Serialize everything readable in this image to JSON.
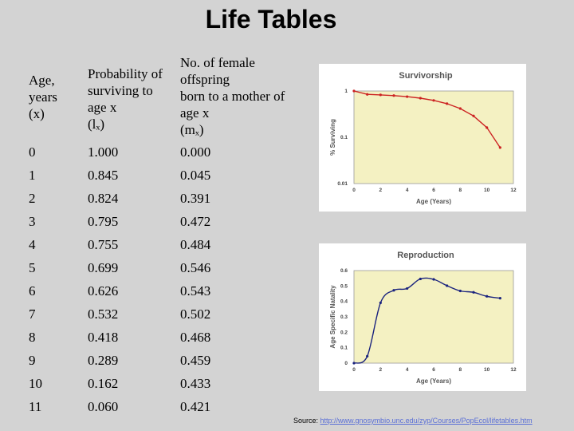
{
  "title": "Life Tables",
  "table": {
    "headers": {
      "age": [
        "Age,",
        "years",
        "(x)"
      ],
      "lx": [
        "Probability of",
        "surviving to",
        "age x",
        "(lₓ)"
      ],
      "mx": [
        "No. of female",
        "offspring",
        "born to a mother of",
        "age x",
        "(mₓ)"
      ]
    },
    "rows": [
      [
        "0",
        "1.000",
        "0.000"
      ],
      [
        "1",
        "0.845",
        "0.045"
      ],
      [
        "2",
        "0.824",
        "0.391"
      ],
      [
        "3",
        "0.795",
        "0.472"
      ],
      [
        "4",
        "0.755",
        "0.484"
      ],
      [
        "5",
        "0.699",
        "0.546"
      ],
      [
        "6",
        "0.626",
        "0.543"
      ],
      [
        "7",
        "0.532",
        "0.502"
      ],
      [
        "8",
        "0.418",
        "0.468"
      ],
      [
        "9",
        "0.289",
        "0.459"
      ],
      [
        "10",
        "0.162",
        "0.433"
      ],
      [
        "11",
        "0.060",
        "0.421"
      ]
    ]
  },
  "source": {
    "prefix": "Source: ",
    "link": "http://www.gnosymbio.unc.edu/zyp/Courses/PopEcol/lifetables.htm"
  },
  "chart_data": [
    {
      "type": "line",
      "title": "Survivorship",
      "xlabel": "Age (Years)",
      "ylabel": "% Surviving",
      "xlim": [
        0,
        12
      ],
      "ylim": [
        0.01,
        1
      ],
      "yscale": "log",
      "xticks": [
        "0",
        "2",
        "4",
        "6",
        "8",
        "10",
        "12"
      ],
      "yticks": [
        "1",
        "0.1",
        "0.01"
      ],
      "grid": false,
      "color": "#cc2222",
      "x": [
        0,
        1,
        2,
        3,
        4,
        5,
        6,
        7,
        8,
        9,
        10,
        11
      ],
      "y": [
        1.0,
        0.845,
        0.824,
        0.795,
        0.755,
        0.699,
        0.626,
        0.532,
        0.418,
        0.289,
        0.162,
        0.06
      ]
    },
    {
      "type": "line",
      "title": "Reproduction",
      "xlabel": "Age (Years)",
      "ylabel": "Age Specific Natality",
      "xlim": [
        0,
        12
      ],
      "ylim": [
        0,
        0.6
      ],
      "xticks": [
        "0",
        "2",
        "4",
        "6",
        "8",
        "10",
        "12"
      ],
      "yticks": [
        "0.6",
        "0.5",
        "0.4",
        "0.3",
        "0.2",
        "0.1",
        "0"
      ],
      "grid": false,
      "color": "#1a237e",
      "x": [
        0,
        1,
        2,
        3,
        4,
        5,
        6,
        7,
        8,
        9,
        10,
        11
      ],
      "y": [
        0.0,
        0.045,
        0.391,
        0.472,
        0.484,
        0.546,
        0.543,
        0.502,
        0.468,
        0.459,
        0.433,
        0.421
      ]
    }
  ]
}
